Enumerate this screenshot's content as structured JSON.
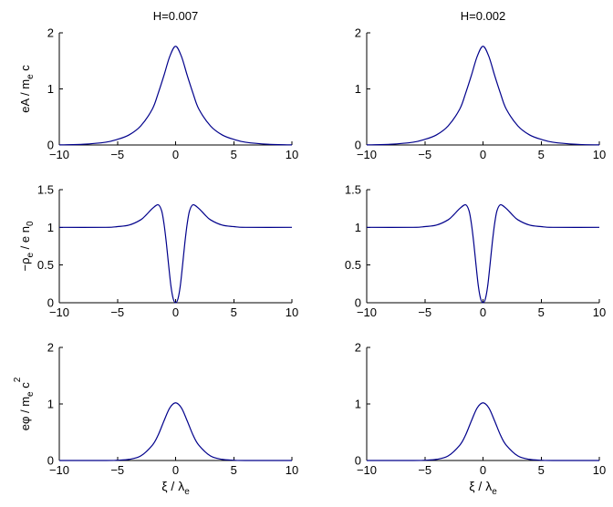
{
  "chart_data": [
    {
      "type": "line",
      "title": "H=0.007",
      "xlabel": "",
      "ylabel": "eA / m_e c",
      "ylabel_parts": {
        "main": "eA / m",
        "sub": "e",
        "tail": " c"
      },
      "xlim": [
        -10,
        10
      ],
      "ylim": [
        0,
        2
      ],
      "xticks": [
        -10,
        -5,
        0,
        5,
        10
      ],
      "yticks": [
        0,
        1,
        2
      ],
      "grid": false,
      "series": [
        {
          "color": "#00008b",
          "x": [
            -10,
            -8,
            -6,
            -5,
            -4,
            -3,
            -2,
            -1.5,
            -1,
            -0.5,
            0,
            0.5,
            1,
            1.5,
            2,
            3,
            4,
            5,
            6,
            8,
            10
          ],
          "y": [
            0.002,
            0.012,
            0.05,
            0.1,
            0.18,
            0.34,
            0.64,
            0.92,
            1.24,
            1.58,
            1.76,
            1.58,
            1.24,
            0.92,
            0.64,
            0.34,
            0.18,
            0.1,
            0.05,
            0.012,
            0.002
          ]
        }
      ]
    },
    {
      "type": "line",
      "title": "H=0.002",
      "xlabel": "",
      "ylabel": "",
      "xlim": [
        -10,
        10
      ],
      "ylim": [
        0,
        2
      ],
      "xticks": [
        -10,
        -5,
        0,
        5,
        10
      ],
      "yticks": [
        0,
        1,
        2
      ],
      "grid": false,
      "series": [
        {
          "color": "#00008b",
          "x": [
            -10,
            -8,
            -6,
            -5,
            -4,
            -3,
            -2,
            -1.5,
            -1,
            -0.5,
            0,
            0.5,
            1,
            1.5,
            2,
            3,
            4,
            5,
            6,
            8,
            10
          ],
          "y": [
            0.002,
            0.012,
            0.05,
            0.1,
            0.18,
            0.34,
            0.64,
            0.92,
            1.24,
            1.58,
            1.76,
            1.58,
            1.24,
            0.92,
            0.64,
            0.34,
            0.18,
            0.1,
            0.05,
            0.012,
            0.002
          ]
        }
      ]
    },
    {
      "type": "line",
      "title": "",
      "xlabel": "",
      "ylabel": "−ρ_e / e n_0",
      "ylabel_parts": {
        "main": "−ρ",
        "sub": "e",
        "tail": " / e n",
        "sub2": "0"
      },
      "xlim": [
        -10,
        10
      ],
      "ylim": [
        0,
        1.5
      ],
      "xticks": [
        -10,
        -5,
        0,
        5,
        10
      ],
      "yticks": [
        0,
        0.5,
        1,
        1.5
      ],
      "ytick_labels": [
        "0",
        "0.5",
        "1",
        "1.5"
      ],
      "grid": false,
      "series": [
        {
          "color": "#00008b",
          "x": [
            -10,
            -6,
            -5,
            -4,
            -3,
            -2.5,
            -2,
            -1.5,
            -1.2,
            -1,
            -0.8,
            -0.6,
            -0.4,
            -0.2,
            0,
            0.2,
            0.4,
            0.6,
            0.8,
            1,
            1.2,
            1.5,
            2,
            2.5,
            3,
            4,
            5,
            6,
            10
          ],
          "y": [
            1.0,
            1.0,
            1.01,
            1.03,
            1.1,
            1.17,
            1.25,
            1.3,
            1.22,
            1.05,
            0.8,
            0.5,
            0.22,
            0.05,
            0.0,
            0.05,
            0.22,
            0.5,
            0.8,
            1.05,
            1.22,
            1.3,
            1.25,
            1.17,
            1.1,
            1.03,
            1.01,
            1.0,
            1.0
          ]
        }
      ]
    },
    {
      "type": "line",
      "title": "",
      "xlabel": "",
      "ylabel": "",
      "xlim": [
        -10,
        10
      ],
      "ylim": [
        0,
        1.5
      ],
      "xticks": [
        -10,
        -5,
        0,
        5,
        10
      ],
      "yticks": [
        0,
        0.5,
        1,
        1.5
      ],
      "ytick_labels": [
        "0",
        "0.5",
        "1",
        "1.5"
      ],
      "grid": false,
      "series": [
        {
          "color": "#00008b",
          "x": [
            -10,
            -6,
            -5,
            -4,
            -3,
            -2.5,
            -2,
            -1.5,
            -1.2,
            -1,
            -0.8,
            -0.6,
            -0.4,
            -0.2,
            0,
            0.2,
            0.4,
            0.6,
            0.8,
            1,
            1.2,
            1.5,
            2,
            2.5,
            3,
            4,
            5,
            6,
            10
          ],
          "y": [
            1.0,
            1.0,
            1.01,
            1.03,
            1.1,
            1.17,
            1.25,
            1.3,
            1.22,
            1.05,
            0.8,
            0.5,
            0.22,
            0.05,
            0.0,
            0.05,
            0.22,
            0.5,
            0.8,
            1.05,
            1.22,
            1.3,
            1.25,
            1.17,
            1.1,
            1.03,
            1.01,
            1.0,
            1.0
          ]
        }
      ]
    },
    {
      "type": "line",
      "title": "",
      "xlabel": "ξ / λ_e",
      "xlabel_parts": {
        "main": "ξ / λ",
        "sub": "e"
      },
      "ylabel": "eφ / m_e c^2",
      "ylabel_parts": {
        "main": "eφ / m",
        "sub": "e",
        "tail": " c",
        "sup": "2"
      },
      "xlim": [
        -10,
        10
      ],
      "ylim": [
        0,
        2
      ],
      "xticks": [
        -10,
        -5,
        0,
        5,
        10
      ],
      "yticks": [
        0,
        1,
        2
      ],
      "grid": false,
      "series": [
        {
          "color": "#00008b",
          "x": [
            -10,
            -6,
            -5,
            -4,
            -3,
            -2,
            -1.5,
            -1,
            -0.5,
            0,
            0.5,
            1,
            1.5,
            2,
            3,
            4,
            5,
            6,
            10
          ],
          "y": [
            0.0,
            0.0,
            0.005,
            0.02,
            0.08,
            0.27,
            0.45,
            0.7,
            0.93,
            1.02,
            0.93,
            0.7,
            0.45,
            0.27,
            0.08,
            0.02,
            0.005,
            0.0,
            0.0
          ]
        }
      ]
    },
    {
      "type": "line",
      "title": "",
      "xlabel": "ξ / λ_e",
      "xlabel_parts": {
        "main": "ξ / λ",
        "sub": "e"
      },
      "ylabel": "",
      "xlim": [
        -10,
        10
      ],
      "ylim": [
        0,
        2
      ],
      "xticks": [
        -10,
        -5,
        0,
        5,
        10
      ],
      "yticks": [
        0,
        1,
        2
      ],
      "grid": false,
      "series": [
        {
          "color": "#00008b",
          "x": [
            -10,
            -6,
            -5,
            -4,
            -3,
            -2,
            -1.5,
            -1,
            -0.5,
            0,
            0.5,
            1,
            1.5,
            2,
            3,
            4,
            5,
            6,
            10
          ],
          "y": [
            0.0,
            0.0,
            0.005,
            0.02,
            0.08,
            0.27,
            0.45,
            0.7,
            0.93,
            1.02,
            0.93,
            0.7,
            0.45,
            0.27,
            0.08,
            0.02,
            0.005,
            0.0,
            0.0
          ]
        }
      ]
    }
  ]
}
